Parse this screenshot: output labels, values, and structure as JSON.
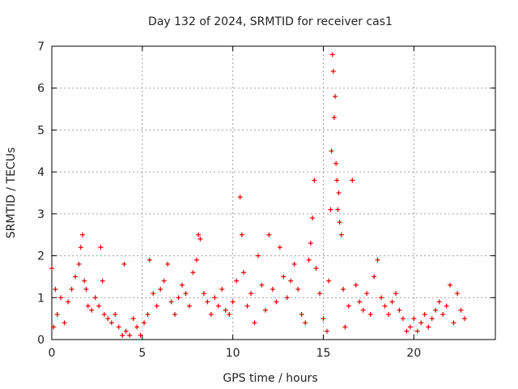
{
  "chart_data": {
    "type": "scatter",
    "title": "Day 132 of 2024, SRMTID for receiver cas1",
    "xlabel": "GPS time / hours",
    "ylabel": "SRMTID / TECUs",
    "xlim": [
      0,
      24.5
    ],
    "ylim": [
      0,
      7
    ],
    "xticks": [
      0,
      5,
      10,
      15,
      20
    ],
    "yticks": [
      0,
      1,
      2,
      3,
      4,
      5,
      6,
      7
    ],
    "grid": true,
    "marker": "+",
    "color": "#e00000",
    "series": [
      {
        "name": "SRMTID",
        "x": [
          0.0,
          0.1,
          0.2,
          0.3,
          0.5,
          0.7,
          0.9,
          1.1,
          1.3,
          1.5,
          1.6,
          1.7,
          1.8,
          1.9,
          2.0,
          2.2,
          2.4,
          2.6,
          2.7,
          2.8,
          2.9,
          3.1,
          3.3,
          3.5,
          3.7,
          3.9,
          4.0,
          4.1,
          4.3,
          4.5,
          4.7,
          4.9,
          5.1,
          5.3,
          5.4,
          5.6,
          5.8,
          6.0,
          6.2,
          6.4,
          6.6,
          6.8,
          7.0,
          7.2,
          7.4,
          7.6,
          7.8,
          8.0,
          8.1,
          8.2,
          8.4,
          8.6,
          8.8,
          9.0,
          9.2,
          9.4,
          9.6,
          9.8,
          10.0,
          10.2,
          10.4,
          10.5,
          10.6,
          10.8,
          11.0,
          11.2,
          11.4,
          11.6,
          11.8,
          12.0,
          12.2,
          12.4,
          12.6,
          12.8,
          13.0,
          13.2,
          13.4,
          13.6,
          13.8,
          14.0,
          14.2,
          14.3,
          14.4,
          14.5,
          14.6,
          14.8,
          15.0,
          15.2,
          15.3,
          15.4,
          15.45,
          15.5,
          15.55,
          15.6,
          15.65,
          15.7,
          15.75,
          15.8,
          15.85,
          15.9,
          16.0,
          16.1,
          16.2,
          16.4,
          16.6,
          16.8,
          17.0,
          17.2,
          17.4,
          17.6,
          17.8,
          18.0,
          18.2,
          18.4,
          18.6,
          18.8,
          19.0,
          19.2,
          19.4,
          19.6,
          19.8,
          20.0,
          20.2,
          20.4,
          20.6,
          20.8,
          21.0,
          21.2,
          21.4,
          21.6,
          21.8,
          22.0,
          22.2,
          22.4,
          22.6,
          22.8
        ],
        "y": [
          1.7,
          0.3,
          1.2,
          0.6,
          1.0,
          0.4,
          0.9,
          1.2,
          1.5,
          1.8,
          2.2,
          2.5,
          1.4,
          1.2,
          0.8,
          0.7,
          1.0,
          0.8,
          2.2,
          1.4,
          0.6,
          0.5,
          0.4,
          0.6,
          0.3,
          0.1,
          1.8,
          0.2,
          0.1,
          0.5,
          0.3,
          0.1,
          0.4,
          0.6,
          1.9,
          1.1,
          0.8,
          1.2,
          1.4,
          1.8,
          0.9,
          0.6,
          1.0,
          1.3,
          1.1,
          0.8,
          1.6,
          1.9,
          2.5,
          2.4,
          1.1,
          0.9,
          0.6,
          1.0,
          0.8,
          1.2,
          0.7,
          0.6,
          0.9,
          1.4,
          3.4,
          2.5,
          1.6,
          0.8,
          1.1,
          0.4,
          2.0,
          1.3,
          0.7,
          2.5,
          1.2,
          0.9,
          2.2,
          1.5,
          1.0,
          1.4,
          1.8,
          1.2,
          0.6,
          0.4,
          1.9,
          2.3,
          2.9,
          3.8,
          1.7,
          1.1,
          0.5,
          0.2,
          1.4,
          3.1,
          4.5,
          6.8,
          6.4,
          5.3,
          5.8,
          4.2,
          3.8,
          3.1,
          3.5,
          2.8,
          2.5,
          1.2,
          0.3,
          0.8,
          3.8,
          1.3,
          0.9,
          0.7,
          1.1,
          0.6,
          1.5,
          1.9,
          1.0,
          0.8,
          0.6,
          0.9,
          1.1,
          0.7,
          0.5,
          0.2,
          0.3,
          0.5,
          0.2,
          0.4,
          0.6,
          0.3,
          0.5,
          0.7,
          0.9,
          0.6,
          0.8,
          1.3,
          0.4,
          1.1,
          0.7,
          0.5
        ]
      }
    ]
  }
}
